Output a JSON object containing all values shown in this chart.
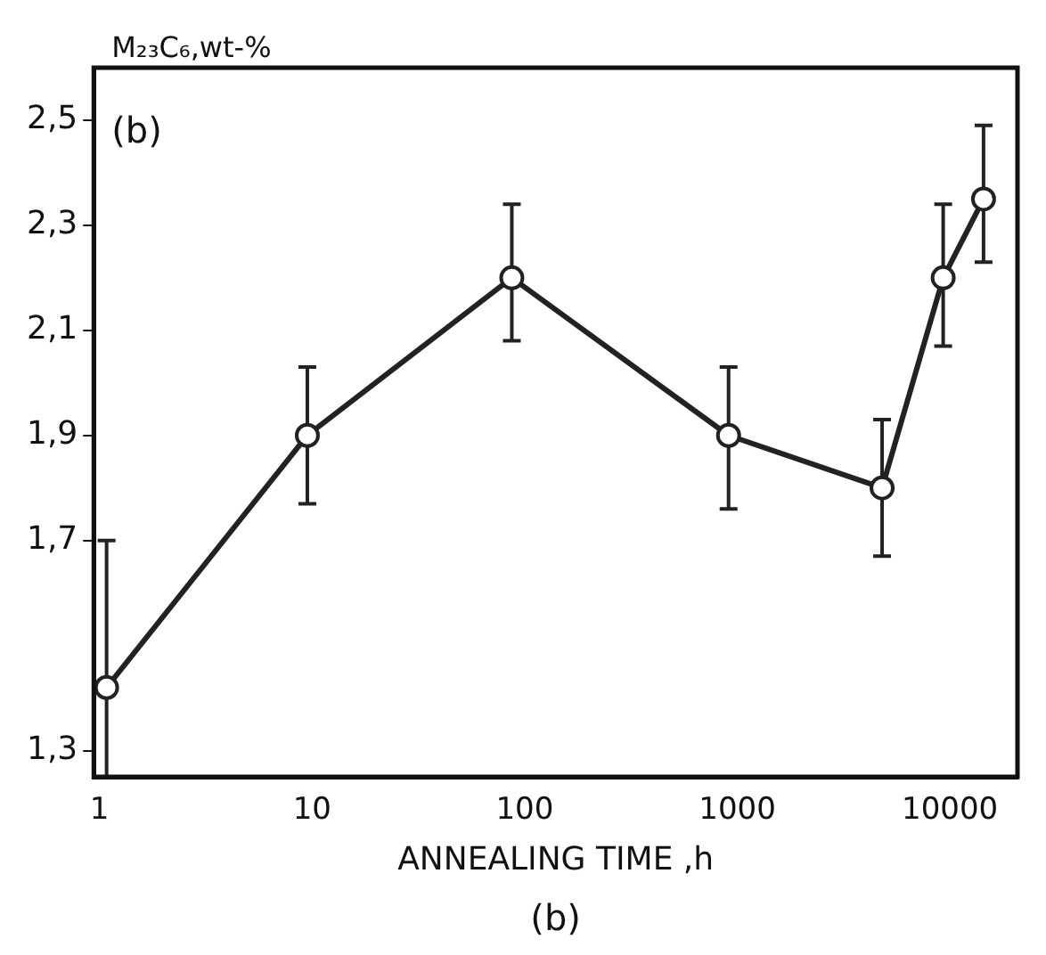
{
  "chart_data": {
    "type": "line",
    "xlabel": "ANNEALING TIME ,h",
    "ylabel": "M₂₃C₆,wt-%",
    "annotations": [
      "(b)",
      "(b)"
    ],
    "x": [
      1.08,
      9.5,
      87,
      910,
      4800,
      9300,
      14400
    ],
    "series": [
      {
        "color": "#222222",
        "values": [
          1.42,
          1.9,
          2.2,
          1.9,
          1.8,
          2.2,
          2.35
        ],
        "errors": [
          [
            1.25,
            1.7
          ],
          [
            1.77,
            2.03
          ],
          [
            2.08,
            2.34
          ],
          [
            1.76,
            2.03
          ],
          [
            1.67,
            1.93
          ],
          [
            2.07,
            2.34
          ],
          [
            2.23,
            2.49
          ]
        ]
      }
    ],
    "log": "x",
    "xlim": [
      0.94,
      20800
    ],
    "xticks": [
      1,
      10,
      100,
      1000,
      10000
    ],
    "ylim": [
      1.25,
      2.6
    ],
    "yticks": [
      {
        "value": 1.3,
        "label": "1,3"
      },
      {
        "value": 1.7,
        "label": "1,7"
      },
      {
        "value": 1.9,
        "label": "1,9"
      },
      {
        "value": 2.1,
        "label": "2,1"
      },
      {
        "value": 2.3,
        "label": "2,3"
      },
      {
        "value": 2.5,
        "label": "2,5"
      }
    ],
    "grid": false,
    "legend": false,
    "marker": "circle",
    "line_style": "solid"
  }
}
